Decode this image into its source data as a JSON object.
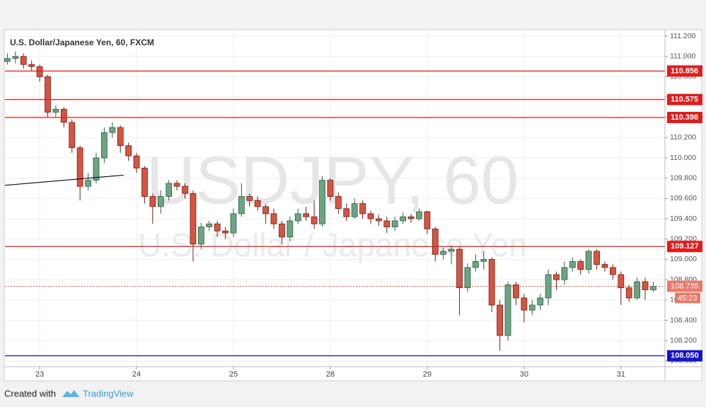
{
  "chart_data": {
    "type": "candlestick",
    "title": "U.S. Dollar/Japanese Yen, 60, FXCM",
    "watermark": "USDJPY, 60",
    "watermark_subtitle": "U.S. Dollar / Japanese Yen",
    "x": [
      -8,
      -6,
      -4,
      -2,
      0,
      2,
      4,
      6,
      8,
      10,
      12,
      14,
      16,
      18,
      20,
      22,
      24,
      26,
      28,
      30,
      32,
      34,
      36,
      38,
      40,
      42,
      44,
      46,
      48,
      50,
      52,
      54,
      56,
      58,
      60,
      62,
      64,
      66,
      68,
      70,
      72,
      74,
      76,
      78,
      80,
      82,
      84,
      86,
      88,
      90,
      92,
      94,
      96,
      98,
      100,
      102,
      104,
      106,
      108,
      110,
      112,
      114,
      116,
      118,
      120,
      122,
      124,
      126,
      128,
      130,
      132,
      134,
      136,
      138,
      140,
      142,
      144,
      146,
      148,
      150,
      152
    ],
    "open": [
      110.95,
      110.98,
      111.0,
      110.92,
      110.9,
      110.8,
      110.45,
      110.48,
      110.35,
      110.1,
      109.72,
      109.78,
      110.0,
      110.25,
      110.3,
      110.12,
      110.02,
      109.9,
      109.62,
      109.52,
      109.62,
      109.75,
      109.72,
      109.65,
      109.15,
      109.32,
      109.35,
      109.28,
      109.26,
      109.45,
      109.62,
      109.58,
      109.52,
      109.45,
      109.35,
      109.22,
      109.38,
      109.45,
      109.42,
      109.35,
      109.78,
      109.62,
      109.5,
      109.42,
      109.55,
      109.45,
      109.4,
      109.38,
      109.32,
      109.38,
      109.42,
      109.4,
      109.47,
      109.3,
      109.05,
      109.08,
      109.1,
      108.72,
      108.92,
      108.98,
      109.0,
      108.55,
      108.25,
      108.75,
      108.62,
      108.5,
      108.55,
      108.62,
      108.85,
      108.8,
      108.92,
      108.98,
      108.9,
      109.08,
      108.95,
      108.92,
      108.85,
      108.72,
      108.62,
      108.78,
      108.7
    ],
    "high": [
      111.03,
      111.05,
      111.03,
      110.96,
      110.92,
      110.82,
      110.52,
      110.5,
      110.38,
      110.12,
      109.85,
      110.05,
      110.3,
      110.35,
      110.32,
      110.15,
      110.05,
      109.92,
      109.65,
      109.68,
      109.78,
      109.78,
      109.75,
      109.68,
      109.36,
      109.38,
      109.38,
      109.32,
      109.5,
      109.75,
      109.65,
      109.62,
      109.55,
      109.5,
      109.38,
      109.42,
      109.5,
      109.52,
      109.58,
      109.82,
      109.8,
      109.66,
      109.55,
      109.6,
      109.58,
      109.48,
      109.44,
      109.42,
      109.42,
      109.46,
      109.45,
      109.5,
      109.48,
      109.32,
      109.12,
      109.14,
      109.12,
      108.96,
      109.05,
      109.08,
      109.02,
      108.6,
      108.78,
      108.78,
      108.66,
      108.6,
      108.66,
      108.9,
      108.88,
      108.98,
      109.02,
      109.0,
      109.1,
      109.1,
      108.98,
      108.95,
      108.88,
      108.75,
      108.82,
      108.82,
      108.78
    ],
    "low": [
      110.92,
      110.93,
      110.88,
      110.86,
      110.75,
      110.4,
      110.4,
      110.3,
      110.05,
      109.58,
      109.68,
      109.75,
      109.95,
      110.2,
      110.05,
      109.97,
      109.85,
      109.55,
      109.35,
      109.45,
      109.58,
      109.68,
      109.6,
      108.98,
      109.1,
      109.28,
      109.22,
      109.2,
      109.22,
      109.42,
      109.52,
      109.48,
      109.35,
      109.3,
      109.15,
      109.18,
      109.35,
      109.38,
      109.3,
      109.32,
      109.58,
      109.45,
      109.38,
      109.4,
      109.4,
      109.35,
      109.33,
      109.26,
      109.28,
      109.35,
      109.36,
      109.38,
      109.25,
      108.98,
      109.0,
      108.95,
      108.45,
      108.68,
      108.88,
      108.9,
      108.48,
      108.1,
      108.2,
      108.55,
      108.38,
      108.45,
      108.5,
      108.55,
      108.7,
      108.75,
      108.88,
      108.85,
      108.86,
      108.9,
      108.88,
      108.8,
      108.55,
      108.58,
      108.6,
      108.6,
      108.68
    ],
    "close": [
      110.98,
      111.0,
      110.92,
      110.9,
      110.8,
      110.45,
      110.48,
      110.35,
      110.1,
      109.72,
      109.78,
      110.0,
      110.25,
      110.3,
      110.12,
      110.02,
      109.9,
      109.62,
      109.52,
      109.62,
      109.75,
      109.72,
      109.65,
      109.15,
      109.32,
      109.35,
      109.28,
      109.26,
      109.45,
      109.62,
      109.58,
      109.52,
      109.45,
      109.35,
      109.22,
      109.38,
      109.45,
      109.42,
      109.35,
      109.78,
      109.62,
      109.5,
      109.42,
      109.55,
      109.45,
      109.4,
      109.38,
      109.32,
      109.38,
      109.42,
      109.4,
      109.47,
      109.3,
      109.05,
      109.08,
      109.1,
      108.72,
      108.92,
      108.98,
      109.0,
      108.55,
      108.25,
      108.75,
      108.62,
      108.5,
      108.55,
      108.62,
      108.85,
      108.8,
      108.92,
      108.98,
      108.9,
      109.08,
      108.95,
      108.92,
      108.85,
      108.72,
      108.62,
      108.78,
      108.7,
      108.735
    ],
    "up_color": "#6ba583",
    "down_color": "#d75442",
    "xlim": [
      -8.6,
      154.9
    ],
    "ylim": [
      107.943,
      111.256
    ],
    "xticks": [
      {
        "value": 0,
        "label": "23"
      },
      {
        "value": 24,
        "label": "24"
      },
      {
        "value": 48,
        "label": "25"
      },
      {
        "value": 72,
        "label": "28"
      },
      {
        "value": 96,
        "label": "29"
      },
      {
        "value": 120,
        "label": "30"
      },
      {
        "value": 144,
        "label": "31"
      }
    ],
    "yticks": [
      {
        "value": 108.0,
        "label": "108.000"
      },
      {
        "value": 108.2,
        "label": "108.200"
      },
      {
        "value": 108.4,
        "label": "108.400"
      },
      {
        "value": 108.6,
        "label": "108.600"
      },
      {
        "value": 108.8,
        "label": "108.800"
      },
      {
        "value": 109.0,
        "label": "109.000"
      },
      {
        "value": 109.2,
        "label": "109.200"
      },
      {
        "value": 109.4,
        "label": "109.400"
      },
      {
        "value": 109.6,
        "label": "109.600"
      },
      {
        "value": 109.8,
        "label": "109.800"
      },
      {
        "value": 110.0,
        "label": "110.000"
      },
      {
        "value": 110.2,
        "label": "110.200"
      },
      {
        "value": 110.4,
        "label": "110.400"
      },
      {
        "value": 110.6,
        "label": "110.600"
      },
      {
        "value": 110.8,
        "label": "110.800"
      },
      {
        "value": 111.0,
        "label": "111.000"
      },
      {
        "value": 111.2,
        "label": "111.200"
      }
    ],
    "grid": true,
    "levels": [
      {
        "value": 110.856,
        "label": "110.856",
        "color": "#e31b1b"
      },
      {
        "value": 110.575,
        "label": "110.575",
        "color": "#e31b1b"
      },
      {
        "value": 110.398,
        "label": "110.398",
        "color": "#e31b1b"
      },
      {
        "value": 109.127,
        "label": "109.127",
        "color": "#e31b1b"
      },
      {
        "value": 108.05,
        "label": "108.050",
        "color": "#1313c8"
      }
    ],
    "current_price": {
      "value": 108.735,
      "label": "108.735"
    },
    "countdown": "45:23",
    "trendline": {
      "x": [
        -8.6,
        20.8
      ],
      "y": [
        109.73,
        109.83
      ]
    }
  },
  "footer": {
    "created_with": "Created with",
    "brand": "TradingView"
  }
}
